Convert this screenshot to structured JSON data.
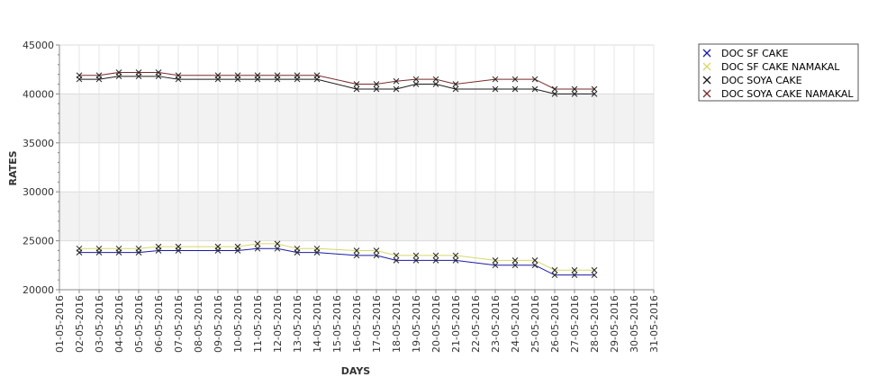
{
  "chart_data": {
    "type": "line",
    "title": "",
    "xlabel": "DAYS",
    "ylabel": "RATES",
    "ylim": [
      20000,
      45000
    ],
    "yticks": [
      20000,
      25000,
      30000,
      35000,
      40000,
      45000
    ],
    "ytick_labels": [
      "20000",
      "25000",
      "30000",
      "35000",
      "40000",
      "45000"
    ],
    "categories": [
      "01-05-2016",
      "02-05-2016",
      "03-05-2016",
      "04-05-2016",
      "05-05-2016",
      "06-05-2016",
      "07-05-2016",
      "08-05-2016",
      "09-05-2016",
      "10-05-2016",
      "11-05-2016",
      "12-05-2016",
      "13-05-2016",
      "14-05-2016",
      "15-05-2016",
      "16-05-2016",
      "17-05-2016",
      "18-05-2016",
      "19-05-2016",
      "20-05-2016",
      "21-05-2016",
      "22-05-2016",
      "23-05-2016",
      "24-05-2016",
      "25-05-2016",
      "26-05-2016",
      "27-05-2016",
      "28-05-2016",
      "29-05-2016",
      "30-05-2016",
      "31-05-2016"
    ],
    "grid": true,
    "legend_position": "top-right",
    "series": [
      {
        "name": "DOC SF CAKE",
        "color": "#1a1aa6",
        "points": [
          [
            "02-05-2016",
            23800
          ],
          [
            "03-05-2016",
            23800
          ],
          [
            "04-05-2016",
            23800
          ],
          [
            "05-05-2016",
            23800
          ],
          [
            "06-05-2016",
            24000
          ],
          [
            "07-05-2016",
            24000
          ],
          [
            "09-05-2016",
            24000
          ],
          [
            "10-05-2016",
            24000
          ],
          [
            "11-05-2016",
            24200
          ],
          [
            "12-05-2016",
            24200
          ],
          [
            "13-05-2016",
            23800
          ],
          [
            "14-05-2016",
            23800
          ],
          [
            "16-05-2016",
            23500
          ],
          [
            "17-05-2016",
            23500
          ],
          [
            "18-05-2016",
            23000
          ],
          [
            "19-05-2016",
            23000
          ],
          [
            "20-05-2016",
            23000
          ],
          [
            "21-05-2016",
            23000
          ],
          [
            "23-05-2016",
            22500
          ],
          [
            "24-05-2016",
            22500
          ],
          [
            "25-05-2016",
            22500
          ],
          [
            "26-05-2016",
            21500
          ],
          [
            "27-05-2016",
            21500
          ],
          [
            "28-05-2016",
            21500
          ]
        ]
      },
      {
        "name": "DOC SF CAKE NAMAKAL",
        "color": "#d6d86a",
        "points": [
          [
            "02-05-2016",
            24200
          ],
          [
            "03-05-2016",
            24200
          ],
          [
            "04-05-2016",
            24200
          ],
          [
            "05-05-2016",
            24200
          ],
          [
            "06-05-2016",
            24400
          ],
          [
            "07-05-2016",
            24400
          ],
          [
            "09-05-2016",
            24400
          ],
          [
            "10-05-2016",
            24400
          ],
          [
            "11-05-2016",
            24700
          ],
          [
            "12-05-2016",
            24700
          ],
          [
            "13-05-2016",
            24200
          ],
          [
            "14-05-2016",
            24200
          ],
          [
            "16-05-2016",
            24000
          ],
          [
            "17-05-2016",
            24000
          ],
          [
            "18-05-2016",
            23500
          ],
          [
            "19-05-2016",
            23500
          ],
          [
            "20-05-2016",
            23500
          ],
          [
            "21-05-2016",
            23500
          ],
          [
            "23-05-2016",
            23000
          ],
          [
            "24-05-2016",
            23000
          ],
          [
            "25-05-2016",
            23000
          ],
          [
            "26-05-2016",
            22000
          ],
          [
            "27-05-2016",
            22000
          ],
          [
            "28-05-2016",
            22000
          ]
        ]
      },
      {
        "name": "DOC SOYA CAKE",
        "color": "#1a1a1a",
        "points": [
          [
            "02-05-2016",
            41500
          ],
          [
            "03-05-2016",
            41500
          ],
          [
            "04-05-2016",
            41800
          ],
          [
            "05-05-2016",
            41800
          ],
          [
            "06-05-2016",
            41800
          ],
          [
            "07-05-2016",
            41500
          ],
          [
            "09-05-2016",
            41500
          ],
          [
            "10-05-2016",
            41500
          ],
          [
            "11-05-2016",
            41500
          ],
          [
            "12-05-2016",
            41500
          ],
          [
            "13-05-2016",
            41500
          ],
          [
            "14-05-2016",
            41500
          ],
          [
            "16-05-2016",
            40500
          ],
          [
            "17-05-2016",
            40500
          ],
          [
            "18-05-2016",
            40500
          ],
          [
            "19-05-2016",
            41000
          ],
          [
            "20-05-2016",
            41000
          ],
          [
            "21-05-2016",
            40500
          ],
          [
            "23-05-2016",
            40500
          ],
          [
            "24-05-2016",
            40500
          ],
          [
            "25-05-2016",
            40500
          ],
          [
            "26-05-2016",
            40000
          ],
          [
            "27-05-2016",
            40000
          ],
          [
            "28-05-2016",
            40000
          ]
        ]
      },
      {
        "name": "DOC SOYA CAKE NAMAKAL",
        "color": "#7a2a2a",
        "points": [
          [
            "02-05-2016",
            41900
          ],
          [
            "03-05-2016",
            41900
          ],
          [
            "04-05-2016",
            42200
          ],
          [
            "05-05-2016",
            42200
          ],
          [
            "06-05-2016",
            42200
          ],
          [
            "07-05-2016",
            41900
          ],
          [
            "09-05-2016",
            41900
          ],
          [
            "10-05-2016",
            41900
          ],
          [
            "11-05-2016",
            41900
          ],
          [
            "12-05-2016",
            41900
          ],
          [
            "13-05-2016",
            41900
          ],
          [
            "14-05-2016",
            41900
          ],
          [
            "16-05-2016",
            41000
          ],
          [
            "17-05-2016",
            41000
          ],
          [
            "18-05-2016",
            41300
          ],
          [
            "19-05-2016",
            41500
          ],
          [
            "20-05-2016",
            41500
          ],
          [
            "21-05-2016",
            41000
          ],
          [
            "23-05-2016",
            41500
          ],
          [
            "24-05-2016",
            41500
          ],
          [
            "25-05-2016",
            41500
          ],
          [
            "26-05-2016",
            40500
          ],
          [
            "27-05-2016",
            40500
          ],
          [
            "28-05-2016",
            40500
          ]
        ]
      }
    ]
  }
}
